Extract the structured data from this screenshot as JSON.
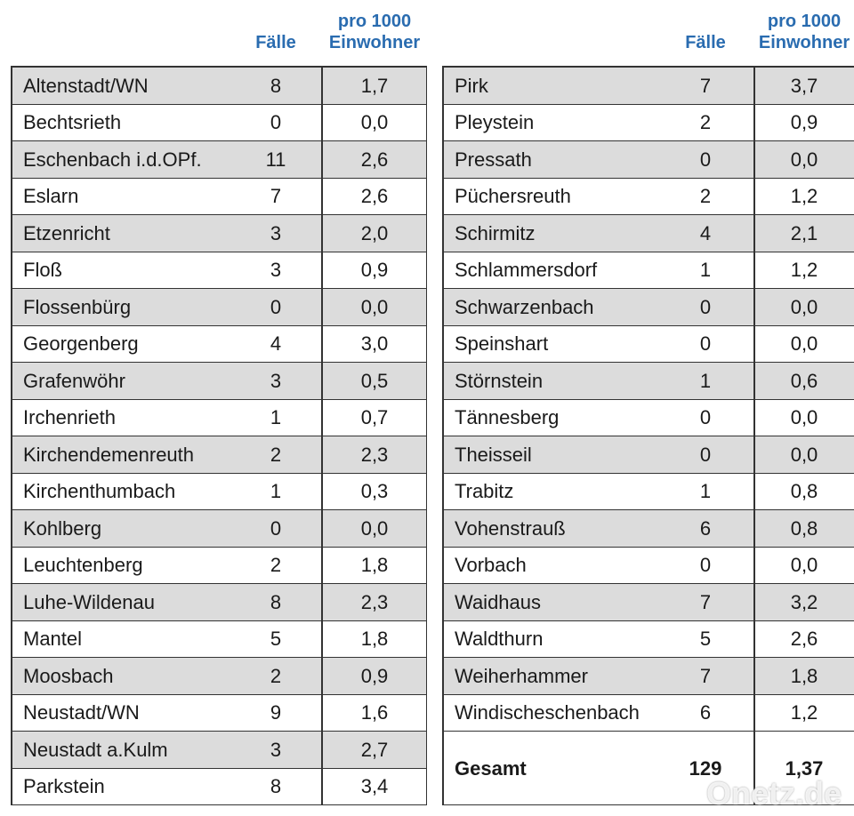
{
  "left": {
    "header": {
      "cases": "Fälle",
      "rate": [
        "pro 1000",
        "Einwohner"
      ]
    },
    "rows": [
      [
        "Altenstadt/WN",
        8,
        "1,7"
      ],
      [
        "Bechtsrieth",
        0,
        "0,0"
      ],
      [
        "Eschenbach i.d.OPf.",
        11,
        "2,6"
      ],
      [
        "Eslarn",
        7,
        "2,6"
      ],
      [
        "Etzenricht",
        3,
        "2,0"
      ],
      [
        "Floß",
        3,
        "0,9"
      ],
      [
        "Flossenbürg",
        0,
        "0,0"
      ],
      [
        "Georgenberg",
        4,
        "3,0"
      ],
      [
        "Grafenwöhr",
        3,
        "0,5"
      ],
      [
        "Irchenrieth",
        1,
        "0,7"
      ],
      [
        "Kirchendemenreuth",
        2,
        "2,3"
      ],
      [
        "Kirchenthumbach",
        1,
        "0,3"
      ],
      [
        "Kohlberg",
        0,
        "0,0"
      ],
      [
        "Leuchtenberg",
        2,
        "1,8"
      ],
      [
        "Luhe-Wildenau",
        8,
        "2,3"
      ],
      [
        "Mantel",
        5,
        "1,8"
      ],
      [
        "Moosbach",
        2,
        "0,9"
      ],
      [
        "Neustadt/WN",
        9,
        "1,6"
      ],
      [
        "Neustadt a.Kulm",
        3,
        "2,7"
      ],
      [
        "Parkstein",
        8,
        "3,4"
      ]
    ]
  },
  "right": {
    "header": {
      "cases": "Fälle",
      "rate": [
        "pro 1000",
        "Einwohner"
      ]
    },
    "rows": [
      [
        "Pirk",
        7,
        "3,7"
      ],
      [
        "Pleystein",
        2,
        "0,9"
      ],
      [
        "Pressath",
        0,
        "0,0"
      ],
      [
        "Püchersreuth",
        2,
        "1,2"
      ],
      [
        "Schirmitz",
        4,
        "2,1"
      ],
      [
        "Schlammersdorf",
        1,
        "1,2"
      ],
      [
        "Schwarzenbach",
        0,
        "0,0"
      ],
      [
        "Speinshart",
        0,
        "0,0"
      ],
      [
        "Störnstein",
        1,
        "0,6"
      ],
      [
        "Tännesberg",
        0,
        "0,0"
      ],
      [
        "Theisseil",
        0,
        "0,0"
      ],
      [
        "Trabitz",
        1,
        "0,8"
      ],
      [
        "Vohenstrauß",
        6,
        "0,8"
      ],
      [
        "Vorbach",
        0,
        "0,0"
      ],
      [
        "Waidhaus",
        7,
        "3,2"
      ],
      [
        "Waldthurn",
        5,
        "2,6"
      ],
      [
        "Weiherhammer",
        7,
        "1,8"
      ],
      [
        "Windischeschenbach",
        6,
        "1,2"
      ]
    ],
    "total": [
      "Gesamt",
      129,
      "1,37"
    ]
  },
  "watermark": "Onetz.de"
}
